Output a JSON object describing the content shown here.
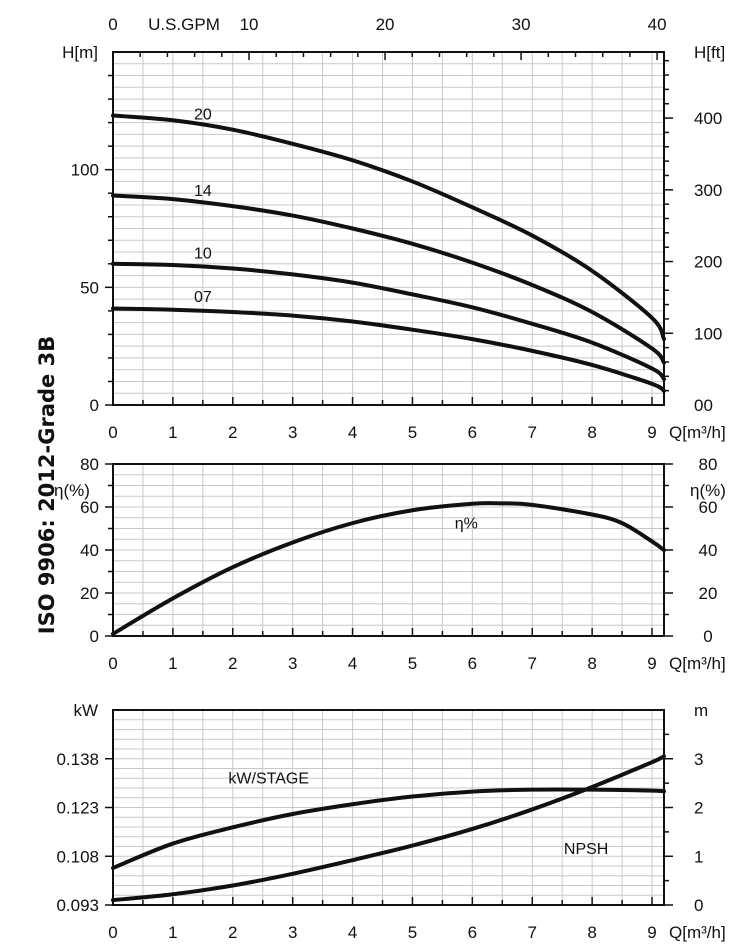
{
  "side_label": "ISO 9906: 2012-Grade 3B",
  "chart_data": [
    {
      "type": "line",
      "panel": "head",
      "x_unit_label": "Q[m³/h]",
      "y_unit_label": "H[m]",
      "y_right_unit_label": "H[ft]",
      "top_axis_label": "U.S.GPM",
      "xlim": [
        0,
        9.2
      ],
      "ylim": [
        0,
        150
      ],
      "x_ticks": [
        "0",
        "1",
        "2",
        "3",
        "4",
        "5",
        "6",
        "7",
        "8",
        "9"
      ],
      "y_ticks": [
        "0",
        "50",
        "100"
      ],
      "y_right_ticks": [
        "00",
        "100",
        "200",
        "300",
        "400"
      ],
      "top_ticks": [
        "0",
        "10",
        "20",
        "30",
        "40"
      ],
      "grid": true,
      "series": [
        {
          "name": "20",
          "x": [
            0,
            1,
            2,
            3,
            4,
            5,
            6,
            7,
            8,
            9,
            9.2
          ],
          "y": [
            123,
            121,
            117,
            111,
            104,
            95,
            84,
            72,
            57,
            37,
            28
          ]
        },
        {
          "name": "14",
          "x": [
            0,
            1,
            2,
            3,
            4,
            5,
            6,
            7,
            8,
            9,
            9.2
          ],
          "y": [
            89,
            87.5,
            84.5,
            80.5,
            75,
            68.5,
            60.5,
            51,
            39.5,
            24,
            18
          ]
        },
        {
          "name": "10",
          "x": [
            0,
            1,
            2,
            3,
            4,
            5,
            6,
            7,
            8,
            9,
            9.2
          ],
          "y": [
            60,
            59.5,
            58,
            55.5,
            52,
            47,
            41.5,
            34.5,
            26.5,
            15.5,
            11
          ]
        },
        {
          "name": "07",
          "x": [
            0,
            1,
            2,
            3,
            4,
            5,
            6,
            7,
            8,
            9,
            9.2
          ],
          "y": [
            41,
            40.5,
            39.5,
            38,
            35.5,
            32,
            28,
            23,
            17,
            9,
            6
          ]
        }
      ]
    },
    {
      "type": "line",
      "panel": "efficiency",
      "x_unit_label": "Q[m³/h]",
      "y_unit_label": "η(%)",
      "y_right_unit_label": "η(%)",
      "xlim": [
        0,
        9.2
      ],
      "ylim": [
        0,
        80
      ],
      "x_ticks": [
        "0",
        "1",
        "2",
        "3",
        "4",
        "5",
        "6",
        "7",
        "8",
        "9"
      ],
      "y_ticks": [
        "0",
        "20",
        "40",
        "60",
        "80"
      ],
      "grid": true,
      "series": [
        {
          "name": "η%",
          "x": [
            0,
            1,
            2,
            3,
            4,
            5,
            6,
            6.5,
            7,
            8,
            8.5,
            9,
            9.2
          ],
          "y": [
            1,
            17.5,
            32,
            43.5,
            52.5,
            58.5,
            61.5,
            61.7,
            61,
            56.5,
            52.5,
            44,
            40
          ]
        }
      ]
    },
    {
      "type": "line",
      "panel": "power_npsh",
      "x_unit_label": "Q[m³/h]",
      "y_unit_label": "kW",
      "y_right_unit_label": "m",
      "xlim": [
        0,
        9.2
      ],
      "ylim": [
        0.093,
        0.153
      ],
      "y_right_lim": [
        0,
        4
      ],
      "x_ticks": [
        "0",
        "1",
        "2",
        "3",
        "4",
        "5",
        "6",
        "7",
        "8",
        "9"
      ],
      "y_ticks": [
        "0.093",
        "0.108",
        "0.123",
        "0.138"
      ],
      "y_right_ticks": [
        "0",
        "1",
        "2",
        "3"
      ],
      "grid": true,
      "series": [
        {
          "name": "kW/STAGE",
          "axis": "left",
          "x": [
            0,
            1,
            2,
            3,
            4,
            5,
            6,
            7,
            8,
            9,
            9.2
          ],
          "y": [
            0.1044,
            0.1119,
            0.1169,
            0.121,
            0.124,
            0.1264,
            0.1279,
            0.1285,
            0.1285,
            0.1282,
            0.128
          ]
        },
        {
          "name": "NPSH",
          "axis": "right",
          "x": [
            0,
            1,
            2,
            3,
            4,
            5,
            6,
            7,
            8,
            9,
            9.2
          ],
          "y": [
            0.1,
            0.22,
            0.4,
            0.64,
            0.92,
            1.22,
            1.56,
            1.96,
            2.42,
            2.93,
            3.05
          ]
        }
      ]
    }
  ]
}
